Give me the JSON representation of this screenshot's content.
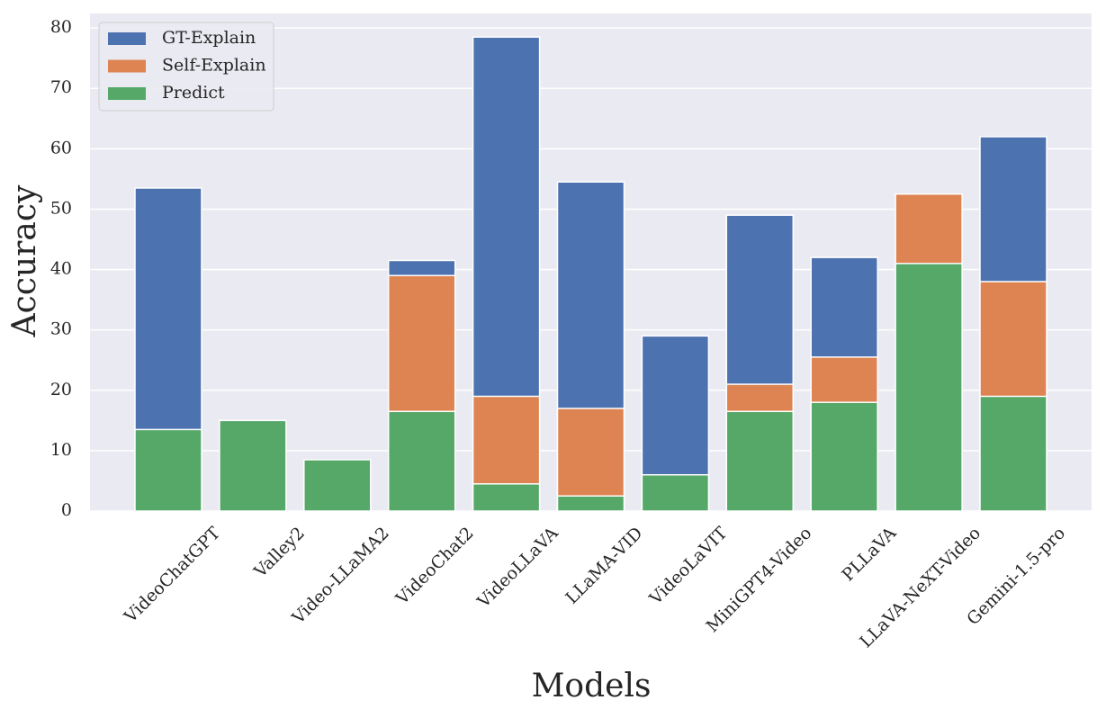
{
  "chart_data": {
    "type": "overlapping-bar",
    "x_label": "Models",
    "y_label": "Accuracy",
    "categories": [
      "VideoChatGPT",
      "Valley2",
      "Video-LLaMA2",
      "VideoChat2",
      "VideoLLaVA",
      "LLaMA-VID",
      "VideoLaVIT",
      "MiniGPT4-Video",
      "PLLaVA",
      "LLaVA-NeXT-Video",
      "Gemini-1.5-pro"
    ],
    "series": [
      {
        "name": "GT-Explain",
        "color": "#4c72b0",
        "values": [
          53.5,
          null,
          null,
          41.5,
          78.5,
          54.5,
          29,
          49,
          42,
          null,
          62
        ]
      },
      {
        "name": "Self-Explain",
        "color": "#dd8452",
        "values": [
          null,
          null,
          null,
          39,
          19,
          17,
          null,
          21,
          25.5,
          52.5,
          38
        ]
      },
      {
        "name": "Predict",
        "color": "#55a868",
        "values": [
          13.5,
          15,
          8.5,
          16.5,
          4.5,
          2.5,
          6,
          16.5,
          18,
          41,
          19
        ]
      }
    ],
    "ylim": [
      0,
      82.4
    ],
    "yticks": [
      0,
      10,
      20,
      30,
      40,
      50,
      60,
      70,
      80
    ],
    "grid": true,
    "legend": "upper-left"
  }
}
